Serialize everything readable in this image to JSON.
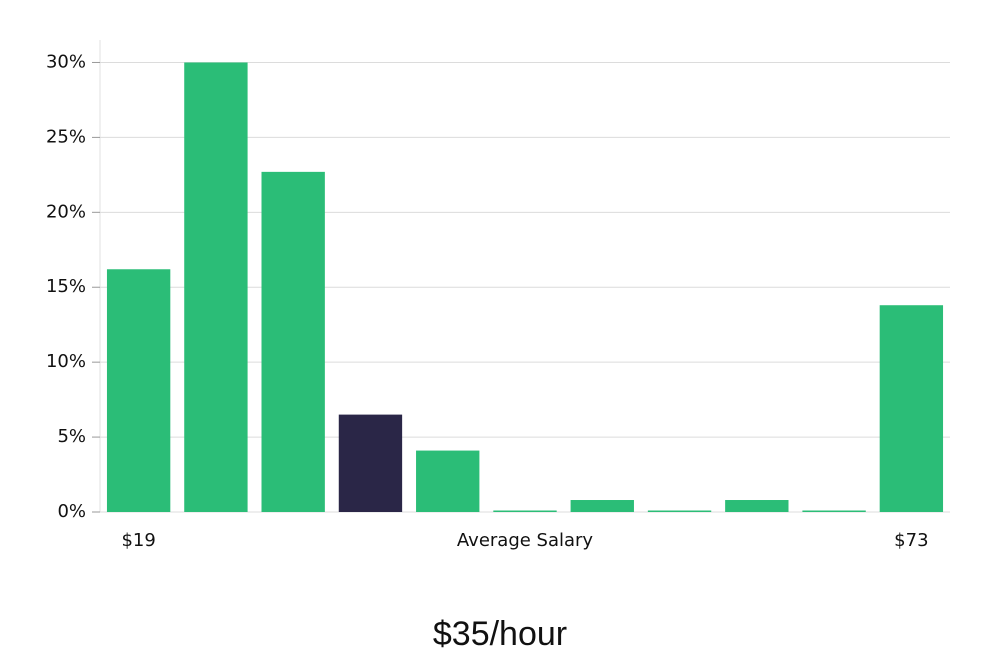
{
  "chart_data": {
    "type": "bar",
    "subtitle": "$35/hour",
    "x_label": "Average Salary",
    "categories": [
      "$19",
      null,
      null,
      null,
      null,
      null,
      null,
      null,
      null,
      null,
      "$73"
    ],
    "values": [
      16.2,
      30.0,
      22.7,
      6.5,
      4.1,
      0.1,
      0.8,
      0.1,
      0.8,
      0.1,
      13.8
    ],
    "colors": [
      "#2bbd77",
      "#2bbd77",
      "#2bbd77",
      "#2a2647",
      "#2bbd77",
      "#2bbd77",
      "#2bbd77",
      "#2bbd77",
      "#2bbd77",
      "#2bbd77",
      "#2bbd77"
    ],
    "ylim": [
      0,
      31.5
    ],
    "yticks": [
      {
        "value": 0,
        "label": "0%"
      },
      {
        "value": 5,
        "label": "5%"
      },
      {
        "value": 10,
        "label": "10%"
      },
      {
        "value": 15,
        "label": "15%"
      },
      {
        "value": 20,
        "label": "20%"
      },
      {
        "value": 25,
        "label": "25%"
      },
      {
        "value": 30,
        "label": "30%"
      }
    ],
    "grid": true
  }
}
